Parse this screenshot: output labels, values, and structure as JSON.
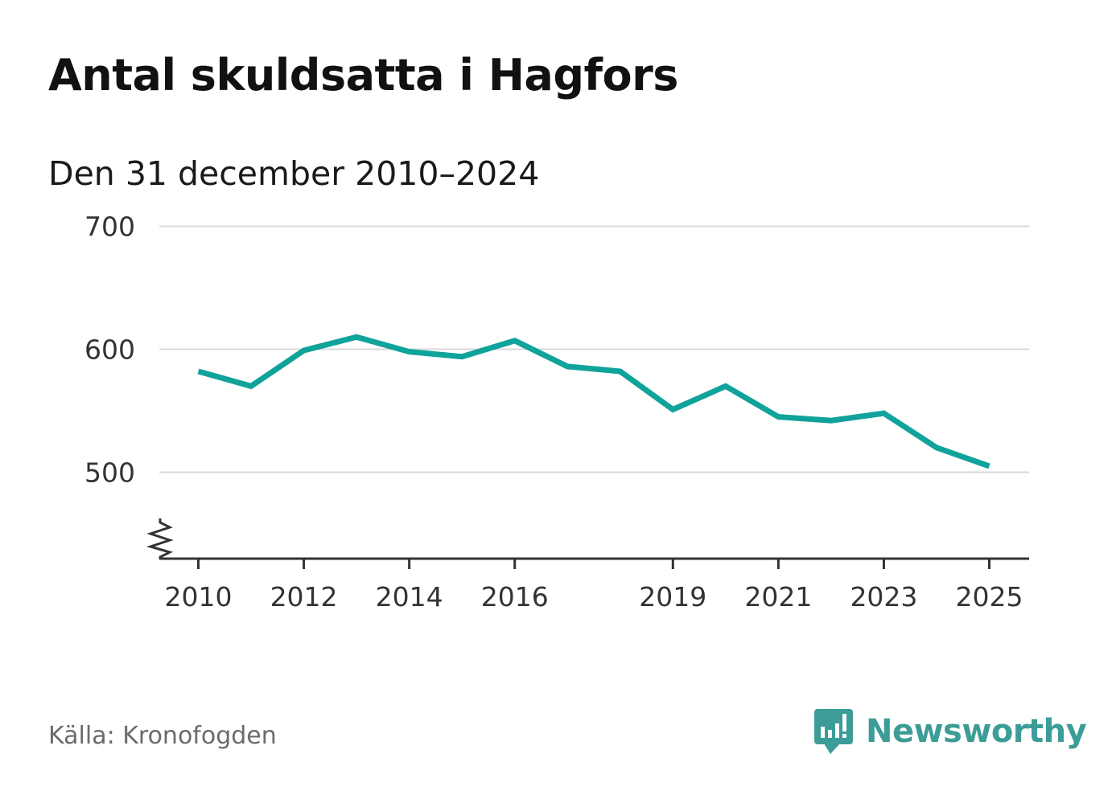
{
  "header": {
    "title": "Antal skuldsatta i Hagfors",
    "subtitle": "Den 31 december 2010–2024"
  },
  "footer": {
    "source": "Källa: Kronofogden",
    "brand": "Newsworthy",
    "brand_icon": "bar-chart-speech-bubble-icon"
  },
  "colors": {
    "line": "#0fa39b",
    "brand": "#3c9c97",
    "grid": "#d9d9d9",
    "axis": "#333333"
  },
  "chart_data": {
    "type": "line",
    "title": "Antal skuldsatta i Hagfors",
    "subtitle": "Den 31 december 2010–2024",
    "xlabel": "",
    "ylabel": "",
    "x": [
      2010,
      2011,
      2012,
      2013,
      2014,
      2015,
      2016,
      2017,
      2018,
      2019,
      2020,
      2021,
      2022,
      2023,
      2024,
      2025
    ],
    "values": [
      582,
      570,
      599,
      610,
      598,
      594,
      607,
      586,
      582,
      551,
      570,
      545,
      542,
      548,
      520,
      505
    ],
    "xlim": [
      2010,
      2025
    ],
    "ylim": [
      430,
      700
    ],
    "y_ticks": [
      500,
      600,
      700
    ],
    "x_ticks": [
      2010,
      2012,
      2014,
      2016,
      2019,
      2021,
      2023,
      2025
    ],
    "y_axis_break": true,
    "grid": true,
    "legend": "none"
  }
}
